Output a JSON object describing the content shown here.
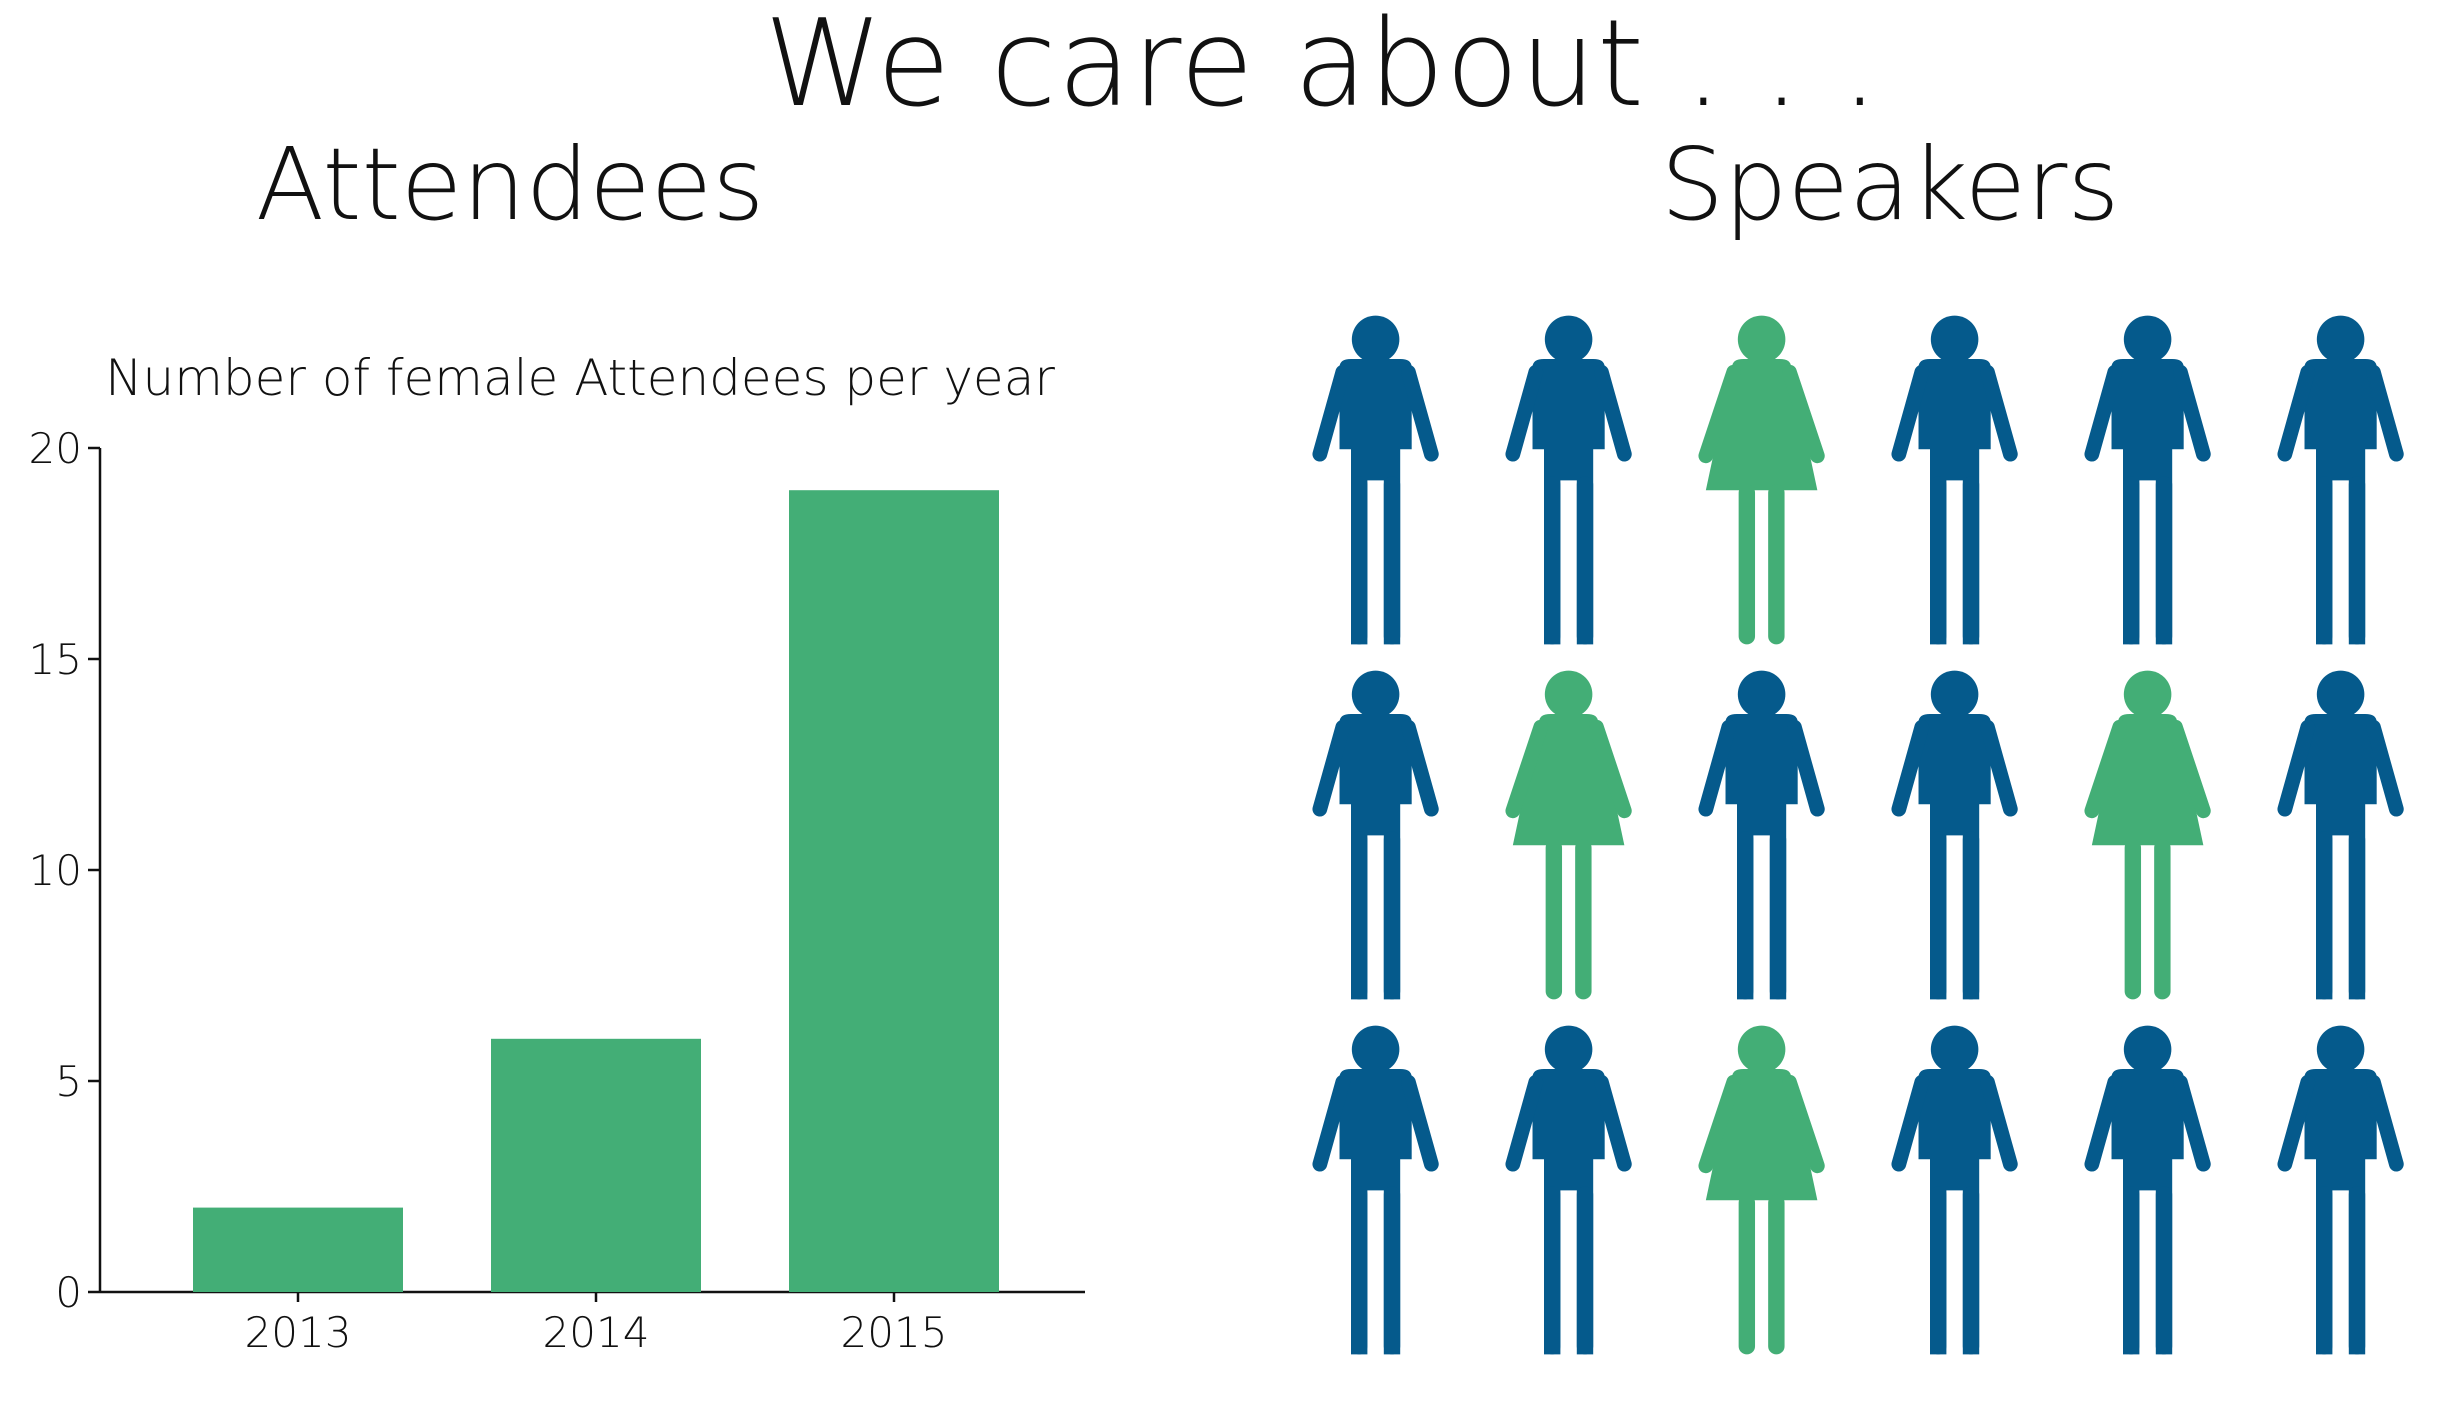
{
  "header": {
    "title": "We care about . . ."
  },
  "sections": {
    "attendees_title": "Attendees",
    "speakers_title": "Speakers"
  },
  "chart_data": {
    "type": "bar",
    "title": "Number of female Attendees per year",
    "categories": [
      "2013",
      "2014",
      "2015"
    ],
    "values": [
      2,
      6,
      19
    ],
    "xlabel": "",
    "ylabel": "",
    "ylim": [
      0,
      20
    ],
    "yticks": [
      0,
      5,
      10,
      15,
      20
    ],
    "grid": false,
    "bar_color": "#43ae76"
  },
  "speakers": {
    "type": "pictogram",
    "colors": {
      "male": "#055a8c",
      "female": "#43ae76"
    },
    "rows": [
      [
        "male",
        "male",
        "female",
        "male",
        "male",
        "male"
      ],
      [
        "male",
        "female",
        "male",
        "male",
        "female",
        "male"
      ],
      [
        "male",
        "male",
        "female",
        "male",
        "male",
        "male"
      ]
    ]
  }
}
